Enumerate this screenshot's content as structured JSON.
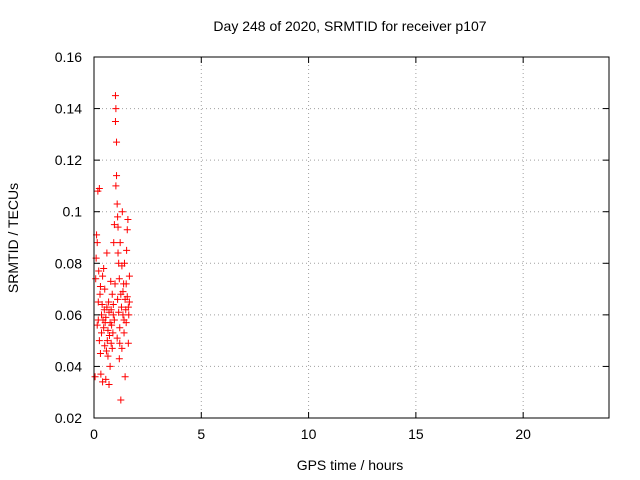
{
  "chart_data": {
    "type": "scatter",
    "title": "Day 248 of 2020, SRMTID for receiver p107",
    "xlabel": "GPS time / hours",
    "ylabel": "SRMTID / TECUs",
    "xlim": [
      0,
      24
    ],
    "ylim": [
      0.02,
      0.16
    ],
    "xticks": [
      0,
      5,
      10,
      15,
      20
    ],
    "yticks": [
      0.02,
      0.04,
      0.06,
      0.08,
      0.1,
      0.12,
      0.14,
      0.16
    ],
    "xtick_labels": [
      "0",
      "5",
      "10",
      "15",
      "20"
    ],
    "ytick_labels": [
      "0.02",
      "0.04",
      "0.06",
      "0.08",
      "0.1",
      "0.12",
      "0.14",
      "0.16"
    ],
    "grid": true,
    "marker": "+",
    "color": "#ff0000",
    "series": [
      {
        "name": "SRMTID",
        "points": [
          [
            0.05,
            0.036
          ],
          [
            0.08,
            0.074
          ],
          [
            0.1,
            0.082
          ],
          [
            0.12,
            0.091
          ],
          [
            0.15,
            0.088
          ],
          [
            0.15,
            0.056
          ],
          [
            0.18,
            0.108
          ],
          [
            0.2,
            0.065
          ],
          [
            0.2,
            0.058
          ],
          [
            0.22,
            0.077
          ],
          [
            0.25,
            0.109
          ],
          [
            0.25,
            0.05
          ],
          [
            0.28,
            0.068
          ],
          [
            0.3,
            0.071
          ],
          [
            0.3,
            0.045
          ],
          [
            0.32,
            0.037
          ],
          [
            0.35,
            0.06
          ],
          [
            0.35,
            0.053
          ],
          [
            0.38,
            0.064
          ],
          [
            0.4,
            0.075
          ],
          [
            0.4,
            0.034
          ],
          [
            0.42,
            0.058
          ],
          [
            0.45,
            0.078
          ],
          [
            0.45,
            0.055
          ],
          [
            0.48,
            0.062
          ],
          [
            0.5,
            0.07
          ],
          [
            0.5,
            0.048
          ],
          [
            0.52,
            0.057
          ],
          [
            0.55,
            0.059
          ],
          [
            0.55,
            0.035
          ],
          [
            0.58,
            0.046
          ],
          [
            0.6,
            0.063
          ],
          [
            0.6,
            0.084
          ],
          [
            0.62,
            0.05
          ],
          [
            0.65,
            0.054
          ],
          [
            0.65,
            0.044
          ],
          [
            0.68,
            0.065
          ],
          [
            0.7,
            0.033
          ],
          [
            0.7,
            0.061
          ],
          [
            0.72,
            0.052
          ],
          [
            0.75,
            0.057
          ],
          [
            0.75,
            0.04
          ],
          [
            0.78,
            0.073
          ],
          [
            0.8,
            0.049
          ],
          [
            0.8,
            0.062
          ],
          [
            0.82,
            0.056
          ],
          [
            0.85,
            0.047
          ],
          [
            0.85,
            0.068
          ],
          [
            0.88,
            0.053
          ],
          [
            0.9,
            0.06
          ],
          [
            0.9,
            0.064
          ],
          [
            0.92,
            0.088
          ],
          [
            0.95,
            0.095
          ],
          [
            0.95,
            0.058
          ],
          [
            0.98,
            0.072
          ],
          [
            1.0,
            0.145
          ],
          [
            1.0,
            0.135
          ],
          [
            1.02,
            0.14
          ],
          [
            1.02,
            0.11
          ],
          [
            1.05,
            0.127
          ],
          [
            1.05,
            0.114
          ],
          [
            1.08,
            0.103
          ],
          [
            1.08,
            0.051
          ],
          [
            1.1,
            0.098
          ],
          [
            1.1,
            0.066
          ],
          [
            1.12,
            0.094
          ],
          [
            1.12,
            0.084
          ],
          [
            1.15,
            0.08
          ],
          [
            1.15,
            0.061
          ],
          [
            1.18,
            0.074
          ],
          [
            1.18,
            0.043
          ],
          [
            1.2,
            0.055
          ],
          [
            1.2,
            0.049
          ],
          [
            1.22,
            0.088
          ],
          [
            1.25,
            0.068
          ],
          [
            1.25,
            0.027
          ],
          [
            1.28,
            0.063
          ],
          [
            1.3,
            0.079
          ],
          [
            1.3,
            0.047
          ],
          [
            1.32,
            0.1
          ],
          [
            1.35,
            0.06
          ],
          [
            1.35,
            0.069
          ],
          [
            1.38,
            0.072
          ],
          [
            1.4,
            0.058
          ],
          [
            1.4,
            0.053
          ],
          [
            1.42,
            0.08
          ],
          [
            1.45,
            0.036
          ],
          [
            1.45,
            0.066
          ],
          [
            1.48,
            0.062
          ],
          [
            1.5,
            0.072
          ],
          [
            1.5,
            0.057
          ],
          [
            1.52,
            0.085
          ],
          [
            1.55,
            0.093
          ],
          [
            1.55,
            0.067
          ],
          [
            1.58,
            0.097
          ],
          [
            1.6,
            0.063
          ],
          [
            1.6,
            0.049
          ],
          [
            1.62,
            0.06
          ],
          [
            1.65,
            0.075
          ],
          [
            1.65,
            0.065
          ]
        ]
      }
    ]
  }
}
